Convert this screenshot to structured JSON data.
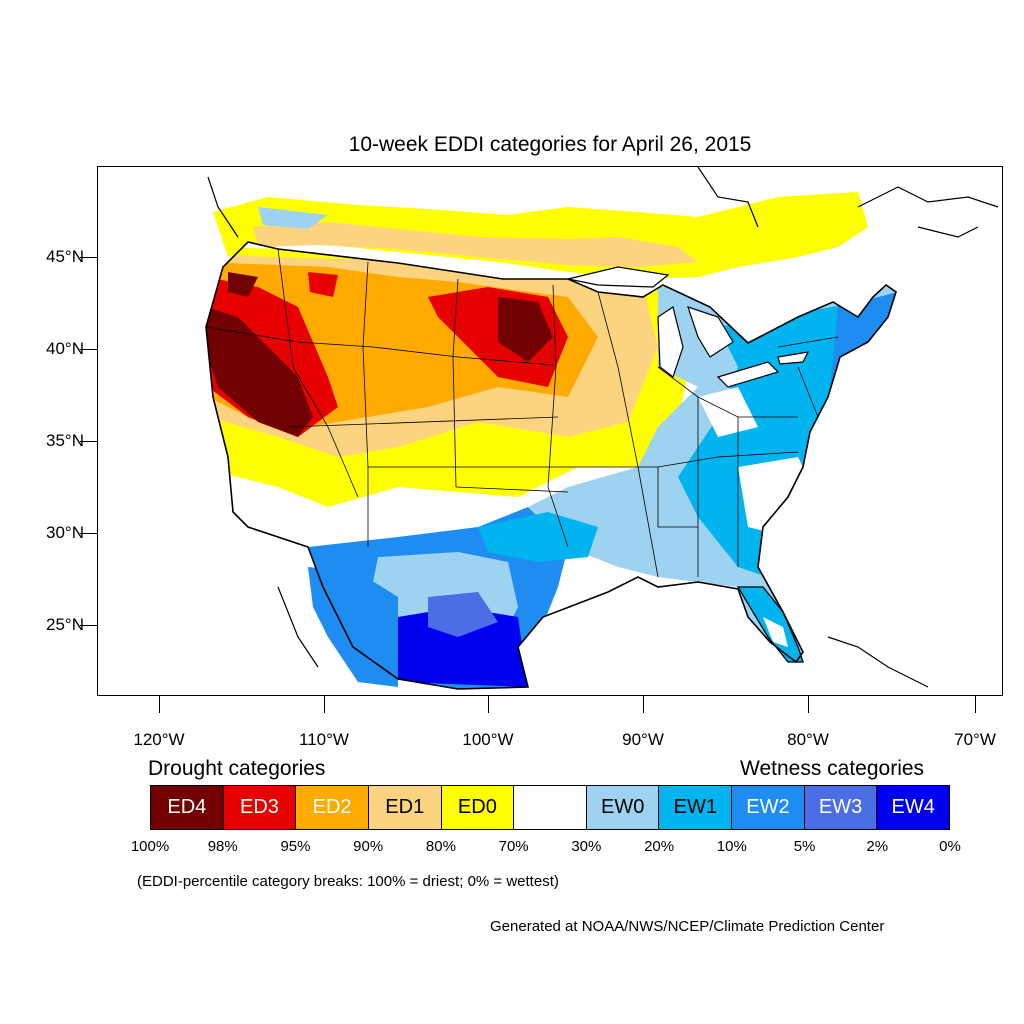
{
  "title": "10-week EDDI categories for April 26, 2015",
  "lat_labels": [
    "45°N",
    "40°N",
    "35°N",
    "30°N",
    "25°N"
  ],
  "lon_labels": [
    "120°W",
    "110°W",
    "100°W",
    "90°W",
    "80°W",
    "70°W"
  ],
  "legend": {
    "drought_heading": "Drought categories",
    "wetness_heading": "Wetness categories",
    "categories": [
      {
        "label": "ED4",
        "color": "#730000",
        "text_color": "#ffffff"
      },
      {
        "label": "ED3",
        "color": "#e60000",
        "text_color": "#ffffff"
      },
      {
        "label": "ED2",
        "color": "#ffaa00",
        "text_color": "#ffffff"
      },
      {
        "label": "ED1",
        "color": "#fcd37f",
        "text_color": "#000000"
      },
      {
        "label": "ED0",
        "color": "#ffff00",
        "text_color": "#000000"
      },
      {
        "label": "",
        "color": "#ffffff",
        "text_color": "#000000"
      },
      {
        "label": "EW0",
        "color": "#9dd3f0",
        "text_color": "#000000"
      },
      {
        "label": "EW1",
        "color": "#00b4f0",
        "text_color": "#000000"
      },
      {
        "label": "EW2",
        "color": "#1e8cf0",
        "text_color": "#ffffff"
      },
      {
        "label": "EW3",
        "color": "#4b6ee6",
        "text_color": "#ffffff"
      },
      {
        "label": "EW4",
        "color": "#0000f0",
        "text_color": "#ffffff"
      }
    ],
    "breaks": [
      "100%",
      "98%",
      "95%",
      "90%",
      "80%",
      "70%",
      "30%",
      "20%",
      "10%",
      "5%",
      "2%",
      "0%"
    ]
  },
  "breaks_note": "(EDDI-percentile category breaks: 100% = driest; 0% = wettest)",
  "credit": "Generated at NOAA/NWS/NCEP/Climate Prediction Center"
}
